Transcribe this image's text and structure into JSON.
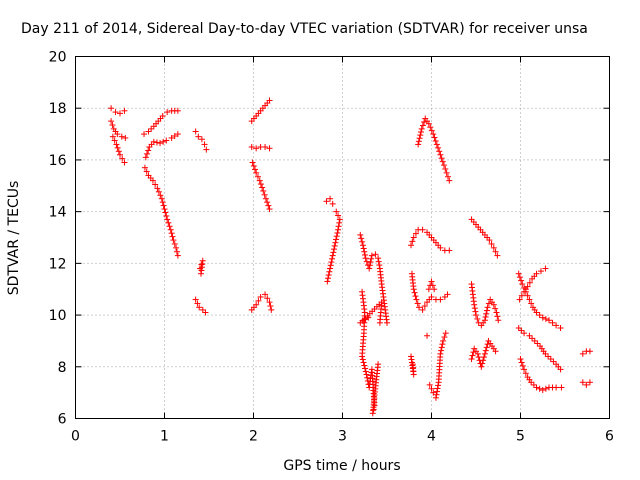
{
  "chart_data": {
    "type": "scatter",
    "title": "Day 211 of 2014, Sidereal Day-to-day VTEC variation (SDTVAR) for receiver unsa",
    "xlabel": "GPS time / hours",
    "ylabel": "SDTVAR / TECUs",
    "xlim": [
      0,
      6
    ],
    "ylim": [
      6,
      20
    ],
    "xticks": [
      "0",
      "1",
      "2",
      "3",
      "4",
      "5",
      "6"
    ],
    "yticks": [
      "6",
      "8",
      "10",
      "12",
      "14",
      "16",
      "18",
      "20"
    ],
    "grid": true,
    "marker": "plus",
    "color": "#ff0000",
    "tracks": [
      [
        [
          0.4,
          18.0
        ],
        [
          0.45,
          17.85
        ],
        [
          0.5,
          17.8
        ],
        [
          0.55,
          17.9
        ]
      ],
      [
        [
          0.4,
          17.5
        ],
        [
          0.43,
          17.2
        ],
        [
          0.47,
          17.0
        ],
        [
          0.52,
          16.9
        ],
        [
          0.56,
          16.85
        ]
      ],
      [
        [
          0.42,
          16.9
        ],
        [
          0.46,
          16.6
        ],
        [
          0.5,
          16.2
        ],
        [
          0.55,
          15.9
        ]
      ],
      [
        [
          0.77,
          17.0
        ],
        [
          0.82,
          17.1
        ],
        [
          0.88,
          17.3
        ],
        [
          0.93,
          17.5
        ],
        [
          0.98,
          17.7
        ],
        [
          1.03,
          17.85
        ],
        [
          1.08,
          17.9
        ],
        [
          1.15,
          17.9
        ]
      ],
      [
        [
          0.79,
          16.1
        ],
        [
          0.83,
          16.5
        ],
        [
          0.88,
          16.7
        ],
        [
          0.95,
          16.65
        ],
        [
          1.02,
          16.75
        ],
        [
          1.08,
          16.85
        ],
        [
          1.15,
          17.0
        ]
      ],
      [
        [
          0.78,
          15.7
        ],
        [
          0.82,
          15.4
        ],
        [
          0.87,
          15.2
        ],
        [
          0.92,
          14.9
        ],
        [
          0.97,
          14.5
        ],
        [
          1.0,
          14.1
        ],
        [
          1.03,
          13.7
        ],
        [
          1.07,
          13.3
        ],
        [
          1.1,
          12.9
        ],
        [
          1.13,
          12.6
        ],
        [
          1.15,
          12.3
        ]
      ],
      [
        [
          1.35,
          17.1
        ],
        [
          1.38,
          16.9
        ],
        [
          1.42,
          16.8
        ],
        [
          1.45,
          16.6
        ],
        [
          1.47,
          16.4
        ]
      ],
      [
        [
          1.4,
          11.8
        ],
        [
          1.43,
          12.1
        ],
        [
          1.41,
          11.6
        ]
      ],
      [
        [
          1.35,
          10.6
        ],
        [
          1.39,
          10.3
        ],
        [
          1.43,
          10.2
        ],
        [
          1.46,
          10.1
        ]
      ],
      [
        [
          1.98,
          17.5
        ],
        [
          2.03,
          17.7
        ],
        [
          2.08,
          17.9
        ],
        [
          2.13,
          18.1
        ],
        [
          2.18,
          18.3
        ]
      ],
      [
        [
          1.98,
          16.5
        ],
        [
          2.03,
          16.45
        ],
        [
          2.08,
          16.5
        ],
        [
          2.13,
          16.5
        ],
        [
          2.18,
          16.45
        ]
      ],
      [
        [
          1.99,
          15.9
        ],
        [
          2.03,
          15.5
        ],
        [
          2.07,
          15.2
        ],
        [
          2.11,
          14.8
        ],
        [
          2.14,
          14.5
        ],
        [
          2.18,
          14.1
        ]
      ],
      [
        [
          1.98,
          10.2
        ],
        [
          2.03,
          10.4
        ],
        [
          2.08,
          10.7
        ],
        [
          2.13,
          10.8
        ],
        [
          2.18,
          10.5
        ],
        [
          2.2,
          10.2
        ]
      ],
      [
        [
          2.82,
          14.4
        ],
        [
          2.86,
          14.5
        ],
        [
          2.89,
          14.3
        ]
      ],
      [
        [
          2.83,
          11.3
        ],
        [
          2.86,
          11.8
        ],
        [
          2.89,
          12.3
        ],
        [
          2.92,
          12.8
        ],
        [
          2.95,
          13.3
        ],
        [
          2.97,
          13.7
        ],
        [
          2.93,
          14.0
        ]
      ],
      [
        [
          3.2,
          13.1
        ],
        [
          3.23,
          12.7
        ],
        [
          3.26,
          12.2
        ],
        [
          3.3,
          11.8
        ],
        [
          3.33,
          12.3
        ],
        [
          3.37,
          12.35
        ],
        [
          3.4,
          12.2
        ],
        [
          3.42,
          11.8
        ],
        [
          3.44,
          11.2
        ],
        [
          3.46,
          10.7
        ],
        [
          3.48,
          10.2
        ],
        [
          3.5,
          9.7
        ]
      ],
      [
        [
          3.22,
          10.9
        ],
        [
          3.25,
          10.1
        ],
        [
          3.24,
          9.3
        ],
        [
          3.22,
          8.4
        ],
        [
          3.27,
          7.7
        ],
        [
          3.3,
          7.2
        ],
        [
          3.33,
          7.9
        ],
        [
          3.36,
          6.5
        ],
        [
          3.34,
          6.2
        ],
        [
          3.38,
          7.5
        ],
        [
          3.4,
          8.1
        ],
        [
          3.42,
          9.7
        ],
        [
          3.44,
          10.5
        ],
        [
          3.2,
          9.7
        ],
        [
          3.29,
          9.9
        ]
      ],
      [
        [
          3.77,
          8.4
        ],
        [
          3.8,
          7.7
        ],
        [
          3.79,
          8.1
        ]
      ],
      [
        [
          3.77,
          12.7
        ],
        [
          3.8,
          13.0
        ],
        [
          3.85,
          13.3
        ],
        [
          3.9,
          13.3
        ],
        [
          3.95,
          13.2
        ],
        [
          4.0,
          13.0
        ],
        [
          4.05,
          12.8
        ],
        [
          4.1,
          12.6
        ],
        [
          4.15,
          12.5
        ],
        [
          4.2,
          12.5
        ]
      ],
      [
        [
          3.78,
          11.6
        ],
        [
          3.8,
          11.0
        ],
        [
          3.83,
          10.6
        ],
        [
          3.86,
          10.3
        ],
        [
          3.9,
          10.2
        ],
        [
          3.95,
          10.5
        ],
        [
          4.0,
          10.7
        ],
        [
          4.05,
          10.6
        ],
        [
          4.1,
          10.6
        ],
        [
          4.15,
          10.7
        ],
        [
          4.18,
          10.8
        ]
      ],
      [
        [
          3.85,
          16.6
        ],
        [
          3.89,
          17.2
        ],
        [
          3.93,
          17.6
        ],
        [
          3.97,
          17.4
        ],
        [
          4.02,
          17.0
        ],
        [
          4.06,
          16.6
        ],
        [
          4.1,
          16.2
        ],
        [
          4.14,
          15.8
        ],
        [
          4.17,
          15.5
        ],
        [
          4.2,
          15.2
        ]
      ],
      [
        [
          3.97,
          11.0
        ],
        [
          4.0,
          11.3
        ],
        [
          4.03,
          11.0
        ],
        [
          3.95,
          9.2
        ],
        [
          3.98,
          7.3
        ],
        [
          4.02,
          7.0
        ],
        [
          4.05,
          6.8
        ],
        [
          4.08,
          7.4
        ],
        [
          4.1,
          8.5
        ],
        [
          4.13,
          9.0
        ],
        [
          4.16,
          9.3
        ]
      ],
      [
        [
          4.45,
          13.7
        ],
        [
          4.5,
          13.5
        ],
        [
          4.55,
          13.3
        ],
        [
          4.6,
          13.1
        ],
        [
          4.65,
          12.9
        ],
        [
          4.7,
          12.6
        ],
        [
          4.74,
          12.3
        ]
      ],
      [
        [
          4.45,
          11.2
        ],
        [
          4.48,
          10.4
        ],
        [
          4.5,
          10.0
        ],
        [
          4.53,
          9.7
        ],
        [
          4.56,
          9.6
        ],
        [
          4.6,
          9.8
        ],
        [
          4.63,
          10.3
        ],
        [
          4.66,
          10.6
        ],
        [
          4.7,
          10.4
        ],
        [
          4.73,
          10.1
        ],
        [
          4.75,
          9.8
        ]
      ],
      [
        [
          4.45,
          8.3
        ],
        [
          4.48,
          8.7
        ],
        [
          4.52,
          8.5
        ],
        [
          4.56,
          8.0
        ],
        [
          4.6,
          8.5
        ],
        [
          4.64,
          9.0
        ],
        [
          4.68,
          8.8
        ],
        [
          4.72,
          8.6
        ]
      ],
      [
        [
          4.98,
          11.6
        ],
        [
          5.02,
          11.2
        ],
        [
          5.06,
          10.9
        ],
        [
          5.1,
          10.6
        ],
        [
          5.14,
          10.3
        ],
        [
          5.18,
          10.1
        ],
        [
          5.25,
          9.9
        ],
        [
          5.32,
          9.8
        ],
        [
          5.4,
          9.6
        ],
        [
          5.45,
          9.5
        ]
      ],
      [
        [
          4.99,
          10.6
        ],
        [
          5.04,
          10.9
        ],
        [
          5.08,
          11.1
        ],
        [
          5.13,
          11.4
        ],
        [
          5.18,
          11.6
        ],
        [
          5.23,
          11.7
        ],
        [
          5.28,
          11.8
        ]
      ],
      [
        [
          4.98,
          9.5
        ],
        [
          5.04,
          9.3
        ],
        [
          5.1,
          9.2
        ],
        [
          5.16,
          9.0
        ],
        [
          5.22,
          8.8
        ],
        [
          5.28,
          8.5
        ],
        [
          5.34,
          8.3
        ],
        [
          5.4,
          8.1
        ],
        [
          5.45,
          7.9
        ]
      ],
      [
        [
          5.0,
          8.3
        ],
        [
          5.04,
          7.9
        ],
        [
          5.08,
          7.6
        ],
        [
          5.12,
          7.4
        ],
        [
          5.18,
          7.2
        ],
        [
          5.25,
          7.1
        ],
        [
          5.32,
          7.2
        ],
        [
          5.4,
          7.2
        ],
        [
          5.46,
          7.2
        ]
      ],
      [
        [
          5.7,
          8.5
        ],
        [
          5.74,
          8.6
        ],
        [
          5.78,
          8.6
        ]
      ],
      [
        [
          5.7,
          7.4
        ],
        [
          5.74,
          7.3
        ],
        [
          5.78,
          7.4
        ]
      ]
    ]
  }
}
